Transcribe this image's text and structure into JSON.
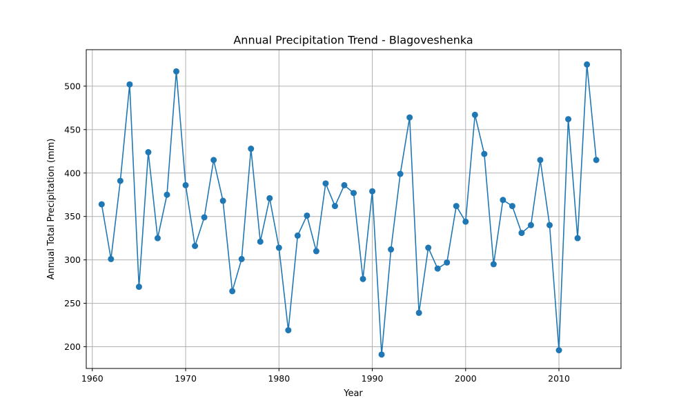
{
  "chart_data": {
    "type": "line",
    "title": "Annual Precipitation Trend - Blagoveshenka",
    "xlabel": "Year",
    "ylabel": "Annual Total Precipitation (mm)",
    "xlim": [
      1959.35,
      2016.65
    ],
    "ylim": [
      175,
      542
    ],
    "x_ticks": [
      1960,
      1970,
      1980,
      1990,
      2000,
      2010
    ],
    "y_ticks": [
      200,
      250,
      300,
      350,
      400,
      450,
      500
    ],
    "grid": true,
    "markers": true,
    "series": [
      {
        "color": "#1f77b4",
        "x": [
          1961,
          1962,
          1963,
          1964,
          1965,
          1966,
          1967,
          1968,
          1969,
          1970,
          1971,
          1972,
          1973,
          1974,
          1975,
          1976,
          1977,
          1978,
          1979,
          1980,
          1981,
          1982,
          1983,
          1984,
          1985,
          1986,
          1987,
          1988,
          1989,
          1990,
          1991,
          1992,
          1993,
          1994,
          1995,
          1996,
          1997,
          1998,
          1999,
          2000,
          2001,
          2002,
          2003,
          2004,
          2005,
          2006,
          2007,
          2008,
          2009,
          2010,
          2011,
          2012,
          2013,
          2014
        ],
        "y": [
          364,
          301,
          391,
          502,
          269,
          424,
          325,
          375,
          517,
          386,
          316,
          349,
          415,
          368,
          264,
          301,
          428,
          321,
          371,
          314,
          219,
          328,
          351,
          310,
          388,
          362,
          386,
          377,
          278,
          379,
          191,
          312,
          399,
          464,
          239,
          314,
          290,
          297,
          362,
          344,
          467,
          422,
          295,
          369,
          362,
          331,
          340,
          415,
          340,
          196,
          462,
          325,
          525,
          415
        ]
      }
    ]
  }
}
